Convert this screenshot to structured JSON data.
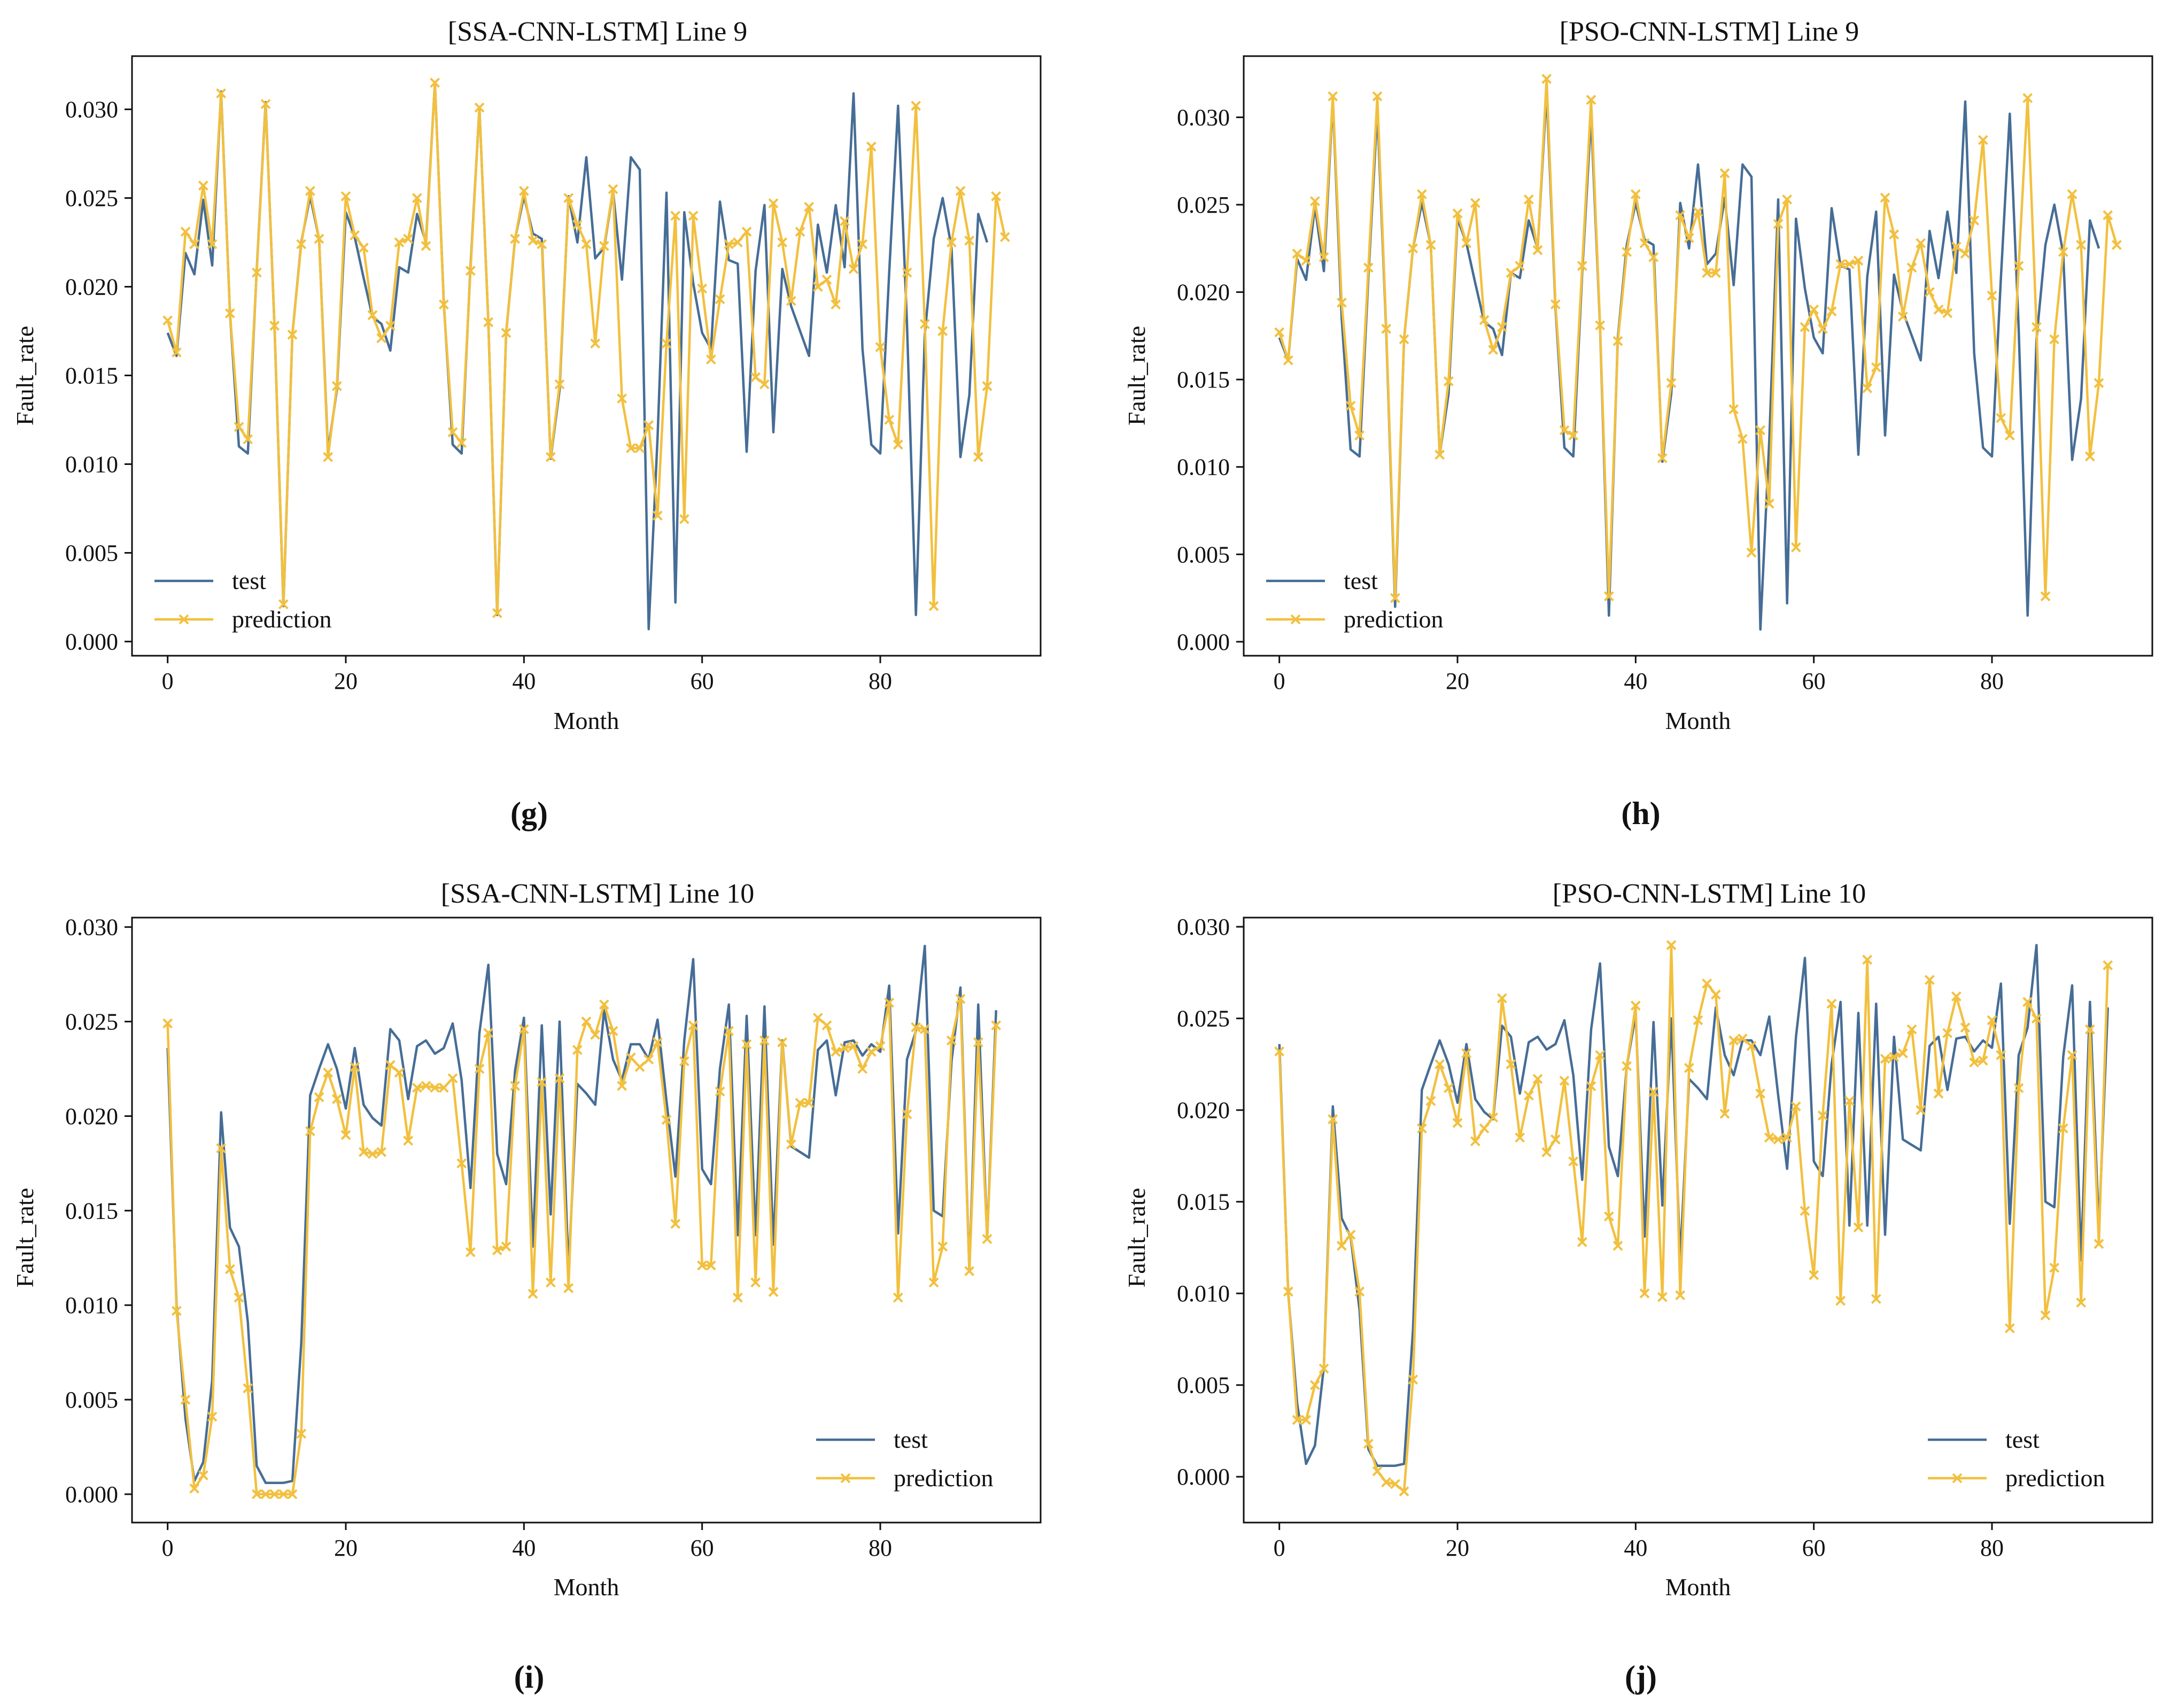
{
  "colors": {
    "test": "#466d96",
    "prediction": "#f2c03f",
    "axis": "#111111"
  },
  "chart_data": [
    {
      "type": "line",
      "panel": "g",
      "title": "[SSA-CNN-LSTM] Line 9",
      "xlabel": "Month",
      "ylabel": "Fault_rate",
      "xlim": [
        -4,
        98
      ],
      "ylim": [
        -0.0008,
        0.033
      ],
      "xticks": [
        0,
        20,
        40,
        60,
        80
      ],
      "yticks": [
        0.0,
        0.005,
        0.01,
        0.015,
        0.02,
        0.025,
        0.03
      ],
      "ytick_labels": [
        "0.000",
        "0.005",
        "0.010",
        "0.015",
        "0.020",
        "0.025",
        "0.030"
      ],
      "legend_location": "lower-left",
      "series": [
        {
          "name": "test",
          "marker": "none",
          "values": [
            0.0174,
            0.0161,
            0.0219,
            0.0207,
            0.0249,
            0.0212,
            0.031,
            0.0185,
            0.011,
            0.0106,
            0.0209,
            0.0304,
            0.0177,
            0.002,
            0.0173,
            0.0225,
            0.0251,
            0.0227,
            0.0107,
            0.0142,
            0.0242,
            0.0228,
            0.0205,
            0.0183,
            0.0179,
            0.0164,
            0.0211,
            0.0208,
            0.0241,
            0.0225,
            0.0315,
            0.0191,
            0.0111,
            0.0106,
            0.0211,
            0.0301,
            0.018,
            0.0015,
            0.0174,
            0.0227,
            0.0251,
            0.023,
            0.0227,
            0.0103,
            0.0142,
            0.0251,
            0.0225,
            0.0273,
            0.0216,
            0.0222,
            0.0254,
            0.0204,
            0.0273,
            0.0266,
            0.0007,
            0.0115,
            0.0253,
            0.0022,
            0.0242,
            0.0202,
            0.0174,
            0.0165,
            0.0248,
            0.0215,
            0.0213,
            0.0107,
            0.0209,
            0.0246,
            0.0118,
            0.021,
            0.0189,
            0.0175,
            0.0161,
            0.0235,
            0.0208,
            0.0246,
            0.0211,
            0.0309,
            0.0165,
            0.0111,
            0.0106,
            0.0208,
            0.0302,
            0.0179,
            0.0015,
            0.0173,
            0.0227,
            0.025,
            0.0222,
            0.0104,
            0.0139,
            0.0241,
            0.0225
          ]
        },
        {
          "name": "prediction",
          "marker": "x",
          "values": [
            0.0181,
            0.0163,
            0.0231,
            0.0224,
            0.0257,
            0.0224,
            0.0309,
            0.0185,
            0.0121,
            0.0114,
            0.0208,
            0.0303,
            0.0178,
            0.0021,
            0.0173,
            0.0224,
            0.0254,
            0.0227,
            0.0104,
            0.0144,
            0.0251,
            0.0229,
            0.0222,
            0.0184,
            0.0171,
            0.0178,
            0.0225,
            0.0227,
            0.025,
            0.0223,
            0.0315,
            0.019,
            0.0118,
            0.0112,
            0.0209,
            0.0301,
            0.018,
            0.0016,
            0.0174,
            0.0227,
            0.0254,
            0.0226,
            0.0224,
            0.0104,
            0.0145,
            0.025,
            0.0235,
            0.0224,
            0.0168,
            0.0223,
            0.0255,
            0.0137,
            0.0109,
            0.0109,
            0.0122,
            0.0071,
            0.0168,
            0.024,
            0.0069,
            0.024,
            0.0199,
            0.0159,
            0.0193,
            0.0224,
            0.0225,
            0.0231,
            0.0149,
            0.0145,
            0.0247,
            0.0225,
            0.0192,
            0.0231,
            0.0245,
            0.02,
            0.0204,
            0.019,
            0.0237,
            0.021,
            0.0224,
            0.0279,
            0.0166,
            0.0125,
            0.0111,
            0.0208,
            0.0302,
            0.0179,
            0.002,
            0.0175,
            0.0225,
            0.0254,
            0.0226,
            0.0104,
            0.0144,
            0.0251,
            0.0228
          ]
        }
      ]
    },
    {
      "type": "line",
      "panel": "h",
      "title": "[PSO-CNN-LSTM] Line 9",
      "xlabel": "Month",
      "ylabel": "Fault_rate",
      "xlim": [
        -4,
        98
      ],
      "ylim": [
        -0.0008,
        0.0335
      ],
      "xticks": [
        0,
        20,
        40,
        60,
        80
      ],
      "yticks": [
        0.0,
        0.005,
        0.01,
        0.015,
        0.02,
        0.025,
        0.03
      ],
      "ytick_labels": [
        "0.000",
        "0.005",
        "0.010",
        "0.015",
        "0.020",
        "0.025",
        "0.030"
      ],
      "legend_location": "lower-left",
      "series": [
        {
          "name": "test",
          "marker": "none",
          "values": [
            0.0174,
            0.0161,
            0.0219,
            0.0207,
            0.0249,
            0.0212,
            0.031,
            0.0185,
            0.011,
            0.0106,
            0.0209,
            0.0304,
            0.0177,
            0.002,
            0.0173,
            0.0225,
            0.0251,
            0.0227,
            0.0107,
            0.0142,
            0.0242,
            0.0228,
            0.0205,
            0.0183,
            0.0179,
            0.0164,
            0.0211,
            0.0208,
            0.0241,
            0.0225,
            0.0315,
            0.0191,
            0.0111,
            0.0106,
            0.0211,
            0.0301,
            0.018,
            0.0015,
            0.0174,
            0.0227,
            0.0251,
            0.023,
            0.0227,
            0.0103,
            0.0142,
            0.0251,
            0.0225,
            0.0273,
            0.0216,
            0.0222,
            0.0254,
            0.0204,
            0.0273,
            0.0266,
            0.0007,
            0.0115,
            0.0253,
            0.0022,
            0.0242,
            0.0202,
            0.0174,
            0.0165,
            0.0248,
            0.0215,
            0.0213,
            0.0107,
            0.0209,
            0.0246,
            0.0118,
            0.021,
            0.0189,
            0.0175,
            0.0161,
            0.0235,
            0.0208,
            0.0246,
            0.0211,
            0.0309,
            0.0165,
            0.0111,
            0.0106,
            0.0208,
            0.0302,
            0.0179,
            0.0015,
            0.0173,
            0.0227,
            0.025,
            0.0222,
            0.0104,
            0.0139,
            0.0241,
            0.0225
          ]
        },
        {
          "name": "prediction",
          "marker": "x",
          "values": [
            0.0177,
            0.0161,
            0.0222,
            0.0218,
            0.0252,
            0.022,
            0.0312,
            0.0194,
            0.0135,
            0.0118,
            0.0214,
            0.0312,
            0.0179,
            0.0025,
            0.0173,
            0.0225,
            0.0256,
            0.0227,
            0.0107,
            0.0149,
            0.0245,
            0.0228,
            0.0251,
            0.0184,
            0.0167,
            0.018,
            0.0211,
            0.0215,
            0.0253,
            0.0224,
            0.0322,
            0.0193,
            0.0121,
            0.0118,
            0.0215,
            0.031,
            0.0181,
            0.0026,
            0.0172,
            0.0223,
            0.0256,
            0.0228,
            0.022,
            0.0105,
            0.0148,
            0.0244,
            0.0231,
            0.0246,
            0.0211,
            0.0211,
            0.0268,
            0.0133,
            0.0116,
            0.0051,
            0.0121,
            0.0079,
            0.0239,
            0.0253,
            0.0054,
            0.018,
            0.019,
            0.0179,
            0.0189,
            0.0216,
            0.0216,
            0.0218,
            0.0145,
            0.0157,
            0.0254,
            0.0233,
            0.0186,
            0.0214,
            0.0228,
            0.02,
            0.019,
            0.0188,
            0.0226,
            0.0222,
            0.0241,
            0.0287,
            0.0198,
            0.0128,
            0.0118,
            0.0215,
            0.0311,
            0.018,
            0.0026,
            0.0173,
            0.0223,
            0.0256,
            0.0227,
            0.0106,
            0.0148,
            0.0244,
            0.0227
          ]
        }
      ]
    },
    {
      "type": "line",
      "panel": "i",
      "title": "[SSA-CNN-LSTM] Line 10",
      "xlabel": "Month",
      "ylabel": "Fault_rate",
      "xlim": [
        -4,
        98
      ],
      "ylim": [
        -0.0015,
        0.0305
      ],
      "xticks": [
        0,
        20,
        40,
        60,
        80
      ],
      "yticks": [
        0.0,
        0.005,
        0.01,
        0.015,
        0.02,
        0.025,
        0.03
      ],
      "ytick_labels": [
        "0.000",
        "0.005",
        "0.010",
        "0.015",
        "0.020",
        "0.025",
        "0.030"
      ],
      "legend_location": "lower-right",
      "series": [
        {
          "name": "test",
          "marker": "none",
          "values": [
            0.0236,
            0.01,
            0.004,
            0.0007,
            0.0017,
            0.006,
            0.0202,
            0.0141,
            0.0131,
            0.0091,
            0.0015,
            0.0006,
            0.0006,
            0.0006,
            0.0007,
            0.008,
            0.0211,
            0.0225,
            0.0238,
            0.0225,
            0.0204,
            0.0236,
            0.0206,
            0.0199,
            0.0195,
            0.0246,
            0.024,
            0.0209,
            0.0237,
            0.024,
            0.0233,
            0.0236,
            0.0249,
            0.0219,
            0.0162,
            0.0244,
            0.028,
            0.018,
            0.0164,
            0.0224,
            0.0252,
            0.0131,
            0.0248,
            0.0148,
            0.025,
            0.0118,
            0.0217,
            0.0212,
            0.0206,
            0.0256,
            0.023,
            0.0219,
            0.0238,
            0.0238,
            0.023,
            0.0251,
            0.0208,
            0.0168,
            0.024,
            0.0283,
            0.0172,
            0.0164,
            0.0225,
            0.0259,
            0.0137,
            0.0253,
            0.0137,
            0.0258,
            0.0132,
            0.024,
            0.0184,
            0.0181,
            0.0178,
            0.0235,
            0.024,
            0.0211,
            0.0239,
            0.024,
            0.0232,
            0.0238,
            0.0234,
            0.0269,
            0.0138,
            0.023,
            0.0245,
            0.029,
            0.015,
            0.0147,
            0.0229,
            0.0268,
            0.0118,
            0.0259,
            0.0135,
            0.0256
          ]
        },
        {
          "name": "prediction",
          "marker": "x",
          "values": [
            0.0249,
            0.0097,
            0.005,
            0.0003,
            0.001,
            0.0041,
            0.0183,
            0.0119,
            0.0104,
            0.0056,
            0.0,
            0.0,
            0.0,
            0.0,
            0.0,
            0.0032,
            0.0192,
            0.021,
            0.0223,
            0.0209,
            0.019,
            0.0226,
            0.0181,
            0.018,
            0.0181,
            0.0227,
            0.0223,
            0.0187,
            0.0215,
            0.0216,
            0.0215,
            0.0215,
            0.022,
            0.0175,
            0.0128,
            0.0225,
            0.0244,
            0.0129,
            0.0131,
            0.0216,
            0.0246,
            0.0106,
            0.0218,
            0.0112,
            0.022,
            0.0109,
            0.0235,
            0.025,
            0.0243,
            0.0259,
            0.0245,
            0.0216,
            0.0231,
            0.0226,
            0.023,
            0.0239,
            0.0198,
            0.0143,
            0.0229,
            0.0248,
            0.0121,
            0.0121,
            0.0213,
            0.0245,
            0.0104,
            0.0238,
            0.0112,
            0.024,
            0.0107,
            0.0239,
            0.0185,
            0.0207,
            0.0207,
            0.0252,
            0.0248,
            0.0234,
            0.0236,
            0.0237,
            0.0225,
            0.0234,
            0.0237,
            0.026,
            0.0104,
            0.0201,
            0.0247,
            0.0246,
            0.0112,
            0.0131,
            0.024,
            0.0262,
            0.0118,
            0.0239,
            0.0135,
            0.0248
          ]
        }
      ]
    },
    {
      "type": "line",
      "panel": "j",
      "title": "[PSO-CNN-LSTM] Line 10",
      "xlabel": "Month",
      "ylabel": "Fault_rate",
      "xlim": [
        -4,
        98
      ],
      "ylim": [
        -0.0025,
        0.0305
      ],
      "xticks": [
        0,
        20,
        40,
        60,
        80
      ],
      "yticks": [
        0.0,
        0.005,
        0.01,
        0.015,
        0.02,
        0.025,
        0.03
      ],
      "ytick_labels": [
        "0.000",
        "0.005",
        "0.010",
        "0.015",
        "0.020",
        "0.025",
        "0.030"
      ],
      "legend_location": "lower-right",
      "series": [
        {
          "name": "test",
          "marker": "none",
          "values": [
            0.0236,
            0.01,
            0.004,
            0.0007,
            0.0017,
            0.006,
            0.0202,
            0.0141,
            0.0131,
            0.0091,
            0.0015,
            0.0006,
            0.0006,
            0.0006,
            0.0007,
            0.008,
            0.0211,
            0.0225,
            0.0238,
            0.0225,
            0.0204,
            0.0236,
            0.0206,
            0.0199,
            0.0195,
            0.0246,
            0.024,
            0.0209,
            0.0237,
            0.024,
            0.0233,
            0.0236,
            0.0249,
            0.0219,
            0.0162,
            0.0244,
            0.028,
            0.018,
            0.0164,
            0.0224,
            0.0252,
            0.0131,
            0.0248,
            0.0148,
            0.025,
            0.0118,
            0.0217,
            0.0212,
            0.0206,
            0.0256,
            0.023,
            0.0219,
            0.0238,
            0.0238,
            0.023,
            0.0251,
            0.0208,
            0.0168,
            0.024,
            0.0283,
            0.0172,
            0.0164,
            0.0225,
            0.0259,
            0.0137,
            0.0253,
            0.0137,
            0.0258,
            0.0132,
            0.024,
            0.0184,
            0.0181,
            0.0178,
            0.0235,
            0.024,
            0.0211,
            0.0239,
            0.024,
            0.0232,
            0.0238,
            0.0234,
            0.0269,
            0.0138,
            0.023,
            0.0245,
            0.029,
            0.015,
            0.0147,
            0.0229,
            0.0268,
            0.0118,
            0.0259,
            0.0135,
            0.0256
          ]
        },
        {
          "name": "prediction",
          "marker": "x",
          "values": [
            0.0232,
            0.0101,
            0.0031,
            0.0031,
            0.005,
            0.0059,
            0.0195,
            0.0126,
            0.0132,
            0.0101,
            0.0018,
            0.0003,
            -0.0003,
            -0.0004,
            -0.0008,
            0.0053,
            0.019,
            0.0205,
            0.0225,
            0.0212,
            0.0193,
            0.0231,
            0.0183,
            0.019,
            0.0196,
            0.0261,
            0.0225,
            0.0185,
            0.0208,
            0.0217,
            0.0177,
            0.0184,
            0.0216,
            0.0172,
            0.0128,
            0.0213,
            0.023,
            0.0142,
            0.0126,
            0.0224,
            0.0257,
            0.01,
            0.021,
            0.0098,
            0.029,
            0.0099,
            0.0223,
            0.0249,
            0.0269,
            0.0263,
            0.0198,
            0.0238,
            0.0239,
            0.0235,
            0.0209,
            0.0185,
            0.0184,
            0.0185,
            0.0202,
            0.0145,
            0.011,
            0.0197,
            0.0258,
            0.0096,
            0.0205,
            0.0136,
            0.0282,
            0.0097,
            0.0228,
            0.0229,
            0.0231,
            0.0244,
            0.02,
            0.0271,
            0.0209,
            0.0242,
            0.0262,
            0.0245,
            0.0226,
            0.0227,
            0.0249,
            0.023,
            0.0081,
            0.0212,
            0.0259,
            0.025,
            0.0088,
            0.0114,
            0.019,
            0.023,
            0.0095,
            0.0244,
            0.0127,
            0.0279
          ]
        }
      ]
    }
  ],
  "panel_labels": [
    "(g)",
    "(h)",
    "(i)",
    "(j)"
  ]
}
